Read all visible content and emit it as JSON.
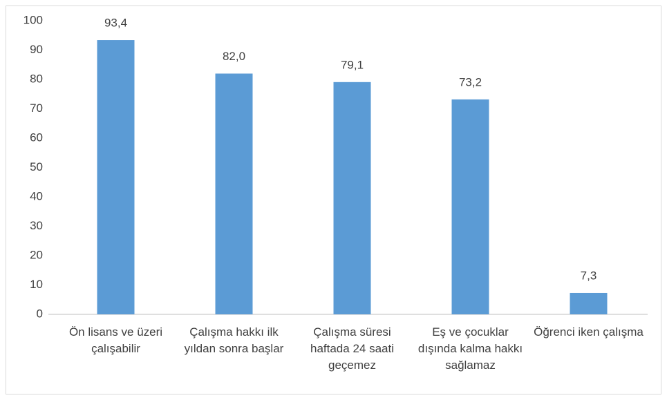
{
  "chart_data": {
    "type": "bar",
    "categories": [
      "Ön lisans ve üzeri çalışabilir",
      "Çalışma hakkı ilk yıldan sonra başlar",
      "Çalışma süresi haftada 24 saati geçemez",
      "Eş ve çocuklar dışında kalma hakkı sağlamaz",
      "Öğrenci iken çalışma"
    ],
    "values": [
      93.4,
      82.0,
      79.1,
      73.2,
      7.3
    ],
    "value_labels": [
      "93,4",
      "82,0",
      "79,1",
      "73,2",
      "7,3"
    ],
    "color": "#5b9bd5",
    "ylim": [
      0,
      100
    ],
    "yticks": [
      0,
      10,
      20,
      30,
      40,
      50,
      60,
      70,
      80,
      90,
      100
    ],
    "grid": false
  }
}
